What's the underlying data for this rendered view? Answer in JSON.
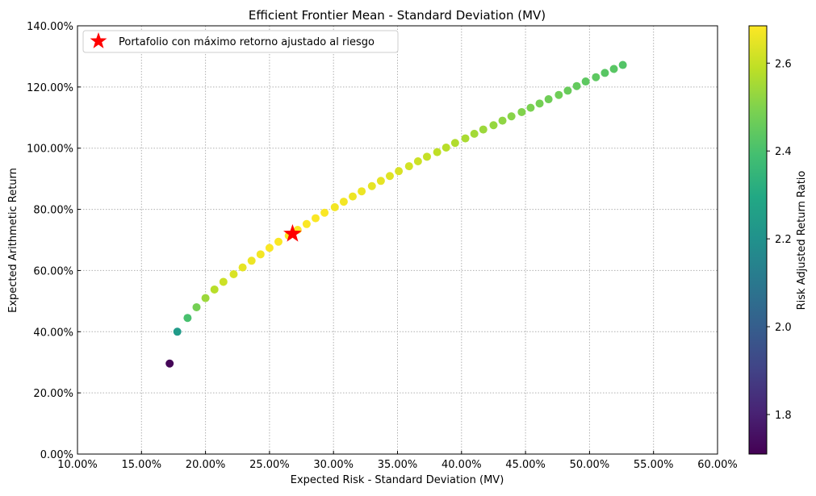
{
  "chart_data": {
    "type": "scatter",
    "title": "Efficient Frontier Mean - Standard Deviation (MV)",
    "xlabel": "Expected Risk - Standard Deviation (MV)",
    "ylabel": "Expected Arithmetic Return",
    "xlim": [
      0.1,
      0.6
    ],
    "ylim": [
      0.0,
      1.4
    ],
    "x_ticks": [
      0.1,
      0.15,
      0.2,
      0.25,
      0.3,
      0.35,
      0.4,
      0.45,
      0.5,
      0.55,
      0.6
    ],
    "x_tick_labels": [
      "10.00%",
      "15.00%",
      "20.00%",
      "25.00%",
      "30.00%",
      "35.00%",
      "40.00%",
      "45.00%",
      "50.00%",
      "55.00%",
      "60.00%"
    ],
    "y_ticks": [
      0.0,
      0.2,
      0.4,
      0.6,
      0.8,
      1.0,
      1.2,
      1.4
    ],
    "y_tick_labels": [
      "0.00%",
      "20.00%",
      "40.00%",
      "60.00%",
      "80.00%",
      "100.00%",
      "120.00%",
      "140.00%"
    ],
    "grid": true,
    "legend_position": "top-left",
    "legend": [
      {
        "label": "Portafolio con máximo retorno ajustado al riesgo",
        "marker": "star",
        "color": "#ff0000"
      }
    ],
    "colorbar": {
      "label": "Risk Adjusted Return Ratio",
      "colormap": "viridis",
      "range": [
        1.71,
        2.685
      ],
      "ticks": [
        1.8,
        2.0,
        2.2,
        2.4,
        2.6
      ],
      "tick_labels": [
        "1.8",
        "2.0",
        "2.2",
        "2.4",
        "2.6"
      ]
    },
    "series": [
      {
        "points": [
          {
            "x": 0.172,
            "y": 0.296,
            "c": 1.72
          },
          {
            "x": 0.178,
            "y": 0.4,
            "c": 2.24
          },
          {
            "x": 0.186,
            "y": 0.445,
            "c": 2.4
          },
          {
            "x": 0.193,
            "y": 0.48,
            "c": 2.48
          },
          {
            "x": 0.2,
            "y": 0.51,
            "c": 2.54
          },
          {
            "x": 0.207,
            "y": 0.538,
            "c": 2.58
          },
          {
            "x": 0.214,
            "y": 0.563,
            "c": 2.61
          },
          {
            "x": 0.222,
            "y": 0.588,
            "c": 2.63
          },
          {
            "x": 0.229,
            "y": 0.61,
            "c": 2.65
          },
          {
            "x": 0.236,
            "y": 0.632,
            "c": 2.66
          },
          {
            "x": 0.243,
            "y": 0.653,
            "c": 2.67
          },
          {
            "x": 0.25,
            "y": 0.674,
            "c": 2.68
          },
          {
            "x": 0.257,
            "y": 0.694,
            "c": 2.68
          },
          {
            "x": 0.265,
            "y": 0.714,
            "c": 2.68
          },
          {
            "x": 0.272,
            "y": 0.733,
            "c": 2.68
          },
          {
            "x": 0.279,
            "y": 0.752,
            "c": 2.68
          },
          {
            "x": 0.286,
            "y": 0.771,
            "c": 2.68
          },
          {
            "x": 0.293,
            "y": 0.789,
            "c": 2.68
          },
          {
            "x": 0.301,
            "y": 0.807,
            "c": 2.67
          },
          {
            "x": 0.308,
            "y": 0.825,
            "c": 2.67
          },
          {
            "x": 0.315,
            "y": 0.842,
            "c": 2.66
          },
          {
            "x": 0.322,
            "y": 0.859,
            "c": 2.66
          },
          {
            "x": 0.33,
            "y": 0.876,
            "c": 2.65
          },
          {
            "x": 0.337,
            "y": 0.893,
            "c": 2.65
          },
          {
            "x": 0.344,
            "y": 0.909,
            "c": 2.64
          },
          {
            "x": 0.351,
            "y": 0.925,
            "c": 2.63
          },
          {
            "x": 0.359,
            "y": 0.941,
            "c": 2.62
          },
          {
            "x": 0.366,
            "y": 0.957,
            "c": 2.61
          },
          {
            "x": 0.373,
            "y": 0.972,
            "c": 2.6
          },
          {
            "x": 0.381,
            "y": 0.987,
            "c": 2.59
          },
          {
            "x": 0.388,
            "y": 1.002,
            "c": 2.58
          },
          {
            "x": 0.395,
            "y": 1.017,
            "c": 2.57
          },
          {
            "x": 0.403,
            "y": 1.032,
            "c": 2.56
          },
          {
            "x": 0.41,
            "y": 1.047,
            "c": 2.55
          },
          {
            "x": 0.417,
            "y": 1.061,
            "c": 2.54
          },
          {
            "x": 0.425,
            "y": 1.075,
            "c": 2.53
          },
          {
            "x": 0.432,
            "y": 1.09,
            "c": 2.52
          },
          {
            "x": 0.439,
            "y": 1.104,
            "c": 2.51
          },
          {
            "x": 0.447,
            "y": 1.118,
            "c": 2.5
          },
          {
            "x": 0.454,
            "y": 1.132,
            "c": 2.49
          },
          {
            "x": 0.461,
            "y": 1.146,
            "c": 2.48
          },
          {
            "x": 0.468,
            "y": 1.16,
            "c": 2.47
          },
          {
            "x": 0.476,
            "y": 1.174,
            "c": 2.47
          },
          {
            "x": 0.483,
            "y": 1.188,
            "c": 2.46
          },
          {
            "x": 0.49,
            "y": 1.203,
            "c": 2.45
          },
          {
            "x": 0.497,
            "y": 1.218,
            "c": 2.44
          },
          {
            "x": 0.505,
            "y": 1.232,
            "c": 2.44
          },
          {
            "x": 0.512,
            "y": 1.246,
            "c": 2.43
          },
          {
            "x": 0.519,
            "y": 1.259,
            "c": 2.43
          },
          {
            "x": 0.526,
            "y": 1.272,
            "c": 2.42
          }
        ]
      }
    ],
    "highlight_point": {
      "x": 0.268,
      "y": 0.72,
      "marker": "star",
      "color": "#ff0000"
    }
  }
}
